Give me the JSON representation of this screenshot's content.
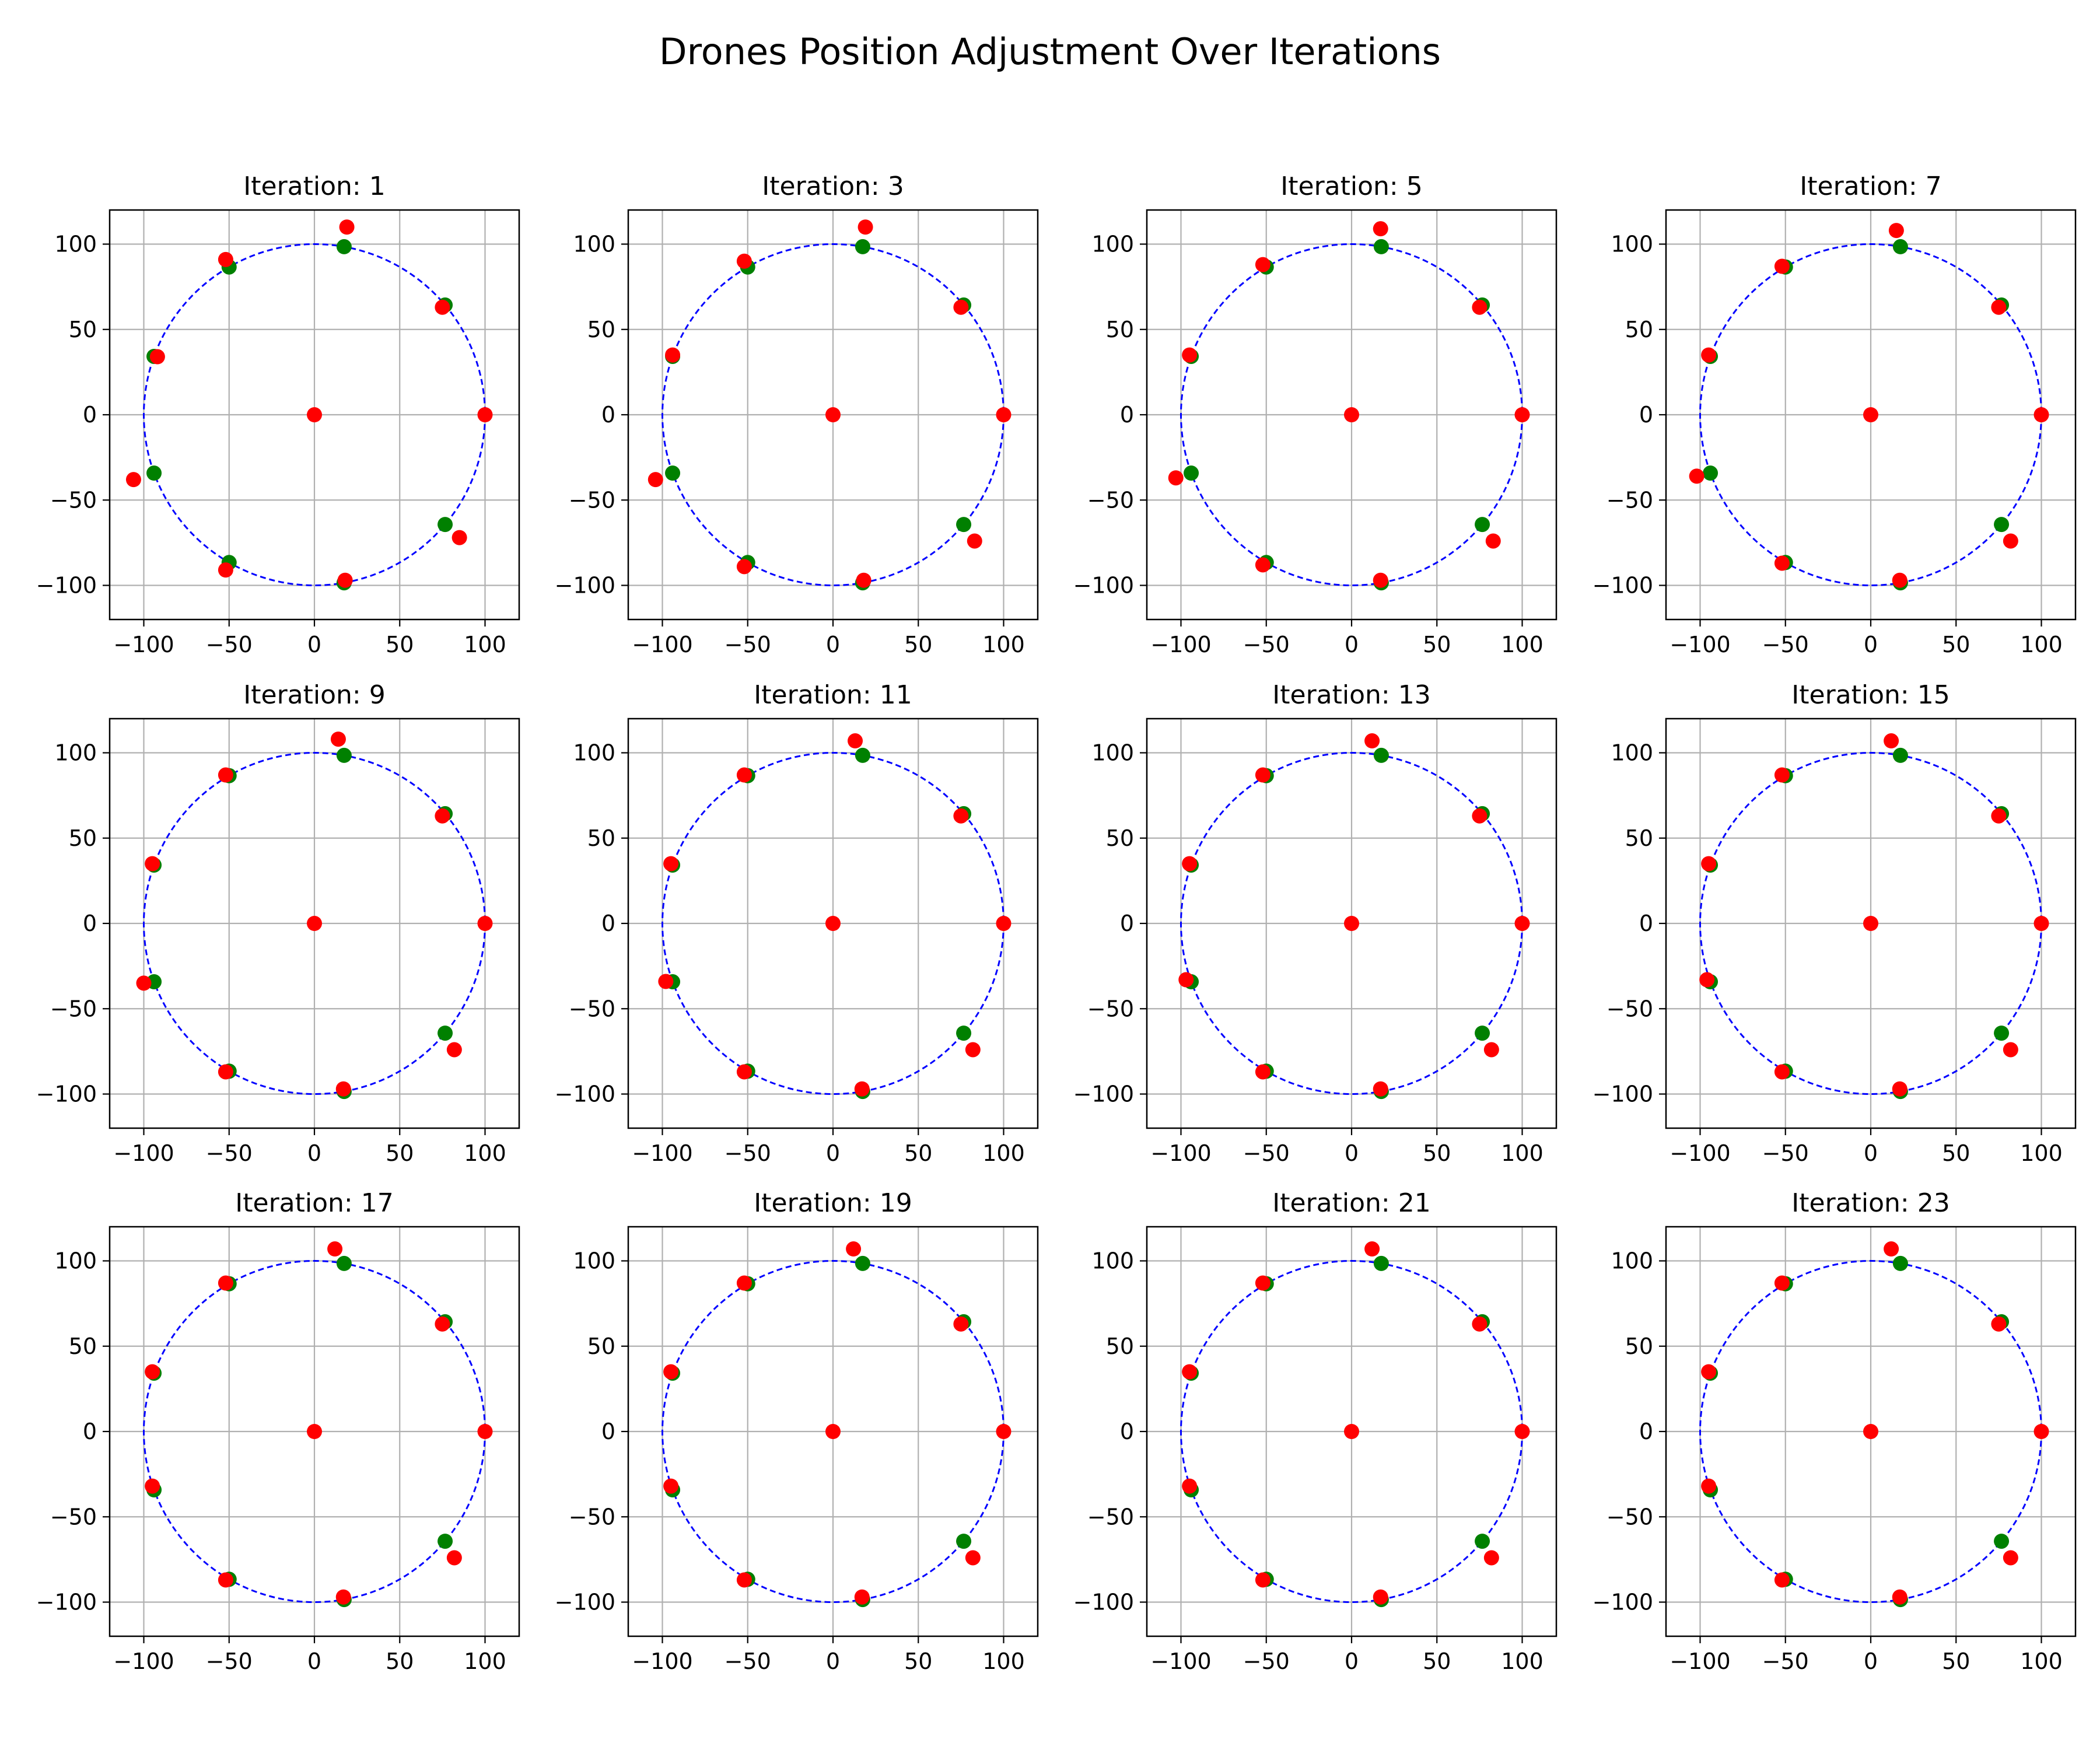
{
  "title": "Drones Position Adjustment Over Iterations",
  "colors": {
    "target": "#008000",
    "drone": "#ff0000",
    "circle": "#0000ff",
    "grid": "#b0b0b0"
  },
  "chart_data": {
    "type": "scatter",
    "xlim": [
      -120,
      120
    ],
    "ylim": [
      -120,
      120
    ],
    "xticks": [
      -100,
      -50,
      0,
      50,
      100
    ],
    "yticks": [
      -100,
      -50,
      0,
      50,
      100
    ],
    "grid": true,
    "reference_circle": {
      "center": [
        0,
        0
      ],
      "radius": 100
    },
    "targets": [
      [
        17.4,
        98.5
      ],
      [
        76.6,
        64.3
      ],
      [
        -50,
        86.6
      ],
      [
        -94,
        34.2
      ],
      [
        -94,
        -34.2
      ],
      [
        -50,
        -86.6
      ],
      [
        17.4,
        -98.5
      ],
      [
        76.6,
        -64.3
      ]
    ],
    "subplots": [
      {
        "title": "Iteration: 1",
        "drones": [
          [
            0,
            0
          ],
          [
            100,
            0
          ],
          [
            19,
            110
          ],
          [
            75,
            63
          ],
          [
            -52,
            91
          ],
          [
            -92,
            34
          ],
          [
            -106,
            -38
          ],
          [
            -52,
            -91
          ],
          [
            18,
            -97
          ],
          [
            85,
            -72
          ]
        ]
      },
      {
        "title": "Iteration: 3",
        "drones": [
          [
            0,
            0
          ],
          [
            100,
            0
          ],
          [
            19,
            110
          ],
          [
            75,
            63
          ],
          [
            -52,
            90
          ],
          [
            -94,
            35
          ],
          [
            -104,
            -38
          ],
          [
            -52,
            -89
          ],
          [
            18,
            -97
          ],
          [
            83,
            -74
          ]
        ]
      },
      {
        "title": "Iteration: 5",
        "drones": [
          [
            0,
            0
          ],
          [
            100,
            0
          ],
          [
            17,
            109
          ],
          [
            75,
            63
          ],
          [
            -52,
            88
          ],
          [
            -95,
            35
          ],
          [
            -103,
            -37
          ],
          [
            -52,
            -88
          ],
          [
            17,
            -97
          ],
          [
            83,
            -74
          ]
        ]
      },
      {
        "title": "Iteration: 7",
        "drones": [
          [
            0,
            0
          ],
          [
            100,
            0
          ],
          [
            15,
            108
          ],
          [
            75,
            63
          ],
          [
            -52,
            87
          ],
          [
            -95,
            35
          ],
          [
            -102,
            -36
          ],
          [
            -52,
            -87
          ],
          [
            17,
            -97
          ],
          [
            82,
            -74
          ]
        ]
      },
      {
        "title": "Iteration: 9",
        "drones": [
          [
            0,
            0
          ],
          [
            100,
            0
          ],
          [
            14,
            108
          ],
          [
            75,
            63
          ],
          [
            -52,
            87
          ],
          [
            -95,
            35
          ],
          [
            -100,
            -35
          ],
          [
            -52,
            -87
          ],
          [
            17,
            -97
          ],
          [
            82,
            -74
          ]
        ]
      },
      {
        "title": "Iteration: 11",
        "drones": [
          [
            0,
            0
          ],
          [
            100,
            0
          ],
          [
            13,
            107
          ],
          [
            75,
            63
          ],
          [
            -52,
            87
          ],
          [
            -95,
            35
          ],
          [
            -98,
            -34
          ],
          [
            -52,
            -87
          ],
          [
            17,
            -97
          ],
          [
            82,
            -74
          ]
        ]
      },
      {
        "title": "Iteration: 13",
        "drones": [
          [
            0,
            0
          ],
          [
            100,
            0
          ],
          [
            12,
            107
          ],
          [
            75,
            63
          ],
          [
            -52,
            87
          ],
          [
            -95,
            35
          ],
          [
            -97,
            -33
          ],
          [
            -52,
            -87
          ],
          [
            17,
            -97
          ],
          [
            82,
            -74
          ]
        ]
      },
      {
        "title": "Iteration: 15",
        "drones": [
          [
            0,
            0
          ],
          [
            100,
            0
          ],
          [
            12,
            107
          ],
          [
            75,
            63
          ],
          [
            -52,
            87
          ],
          [
            -95,
            35
          ],
          [
            -96,
            -33
          ],
          [
            -52,
            -87
          ],
          [
            17,
            -97
          ],
          [
            82,
            -74
          ]
        ]
      },
      {
        "title": "Iteration: 17",
        "drones": [
          [
            0,
            0
          ],
          [
            100,
            0
          ],
          [
            12,
            107
          ],
          [
            75,
            63
          ],
          [
            -52,
            87
          ],
          [
            -95,
            35
          ],
          [
            -95,
            -32
          ],
          [
            -52,
            -87
          ],
          [
            17,
            -97
          ],
          [
            82,
            -74
          ]
        ]
      },
      {
        "title": "Iteration: 19",
        "drones": [
          [
            0,
            0
          ],
          [
            100,
            0
          ],
          [
            12,
            107
          ],
          [
            75,
            63
          ],
          [
            -52,
            87
          ],
          [
            -95,
            35
          ],
          [
            -95,
            -32
          ],
          [
            -52,
            -87
          ],
          [
            17,
            -97
          ],
          [
            82,
            -74
          ]
        ]
      },
      {
        "title": "Iteration: 21",
        "drones": [
          [
            0,
            0
          ],
          [
            100,
            0
          ],
          [
            12,
            107
          ],
          [
            75,
            63
          ],
          [
            -52,
            87
          ],
          [
            -95,
            35
          ],
          [
            -95,
            -32
          ],
          [
            -52,
            -87
          ],
          [
            17,
            -97
          ],
          [
            82,
            -74
          ]
        ]
      },
      {
        "title": "Iteration: 23",
        "drones": [
          [
            0,
            0
          ],
          [
            100,
            0
          ],
          [
            12,
            107
          ],
          [
            75,
            63
          ],
          [
            -52,
            87
          ],
          [
            -95,
            35
          ],
          [
            -95,
            -32
          ],
          [
            -52,
            -87
          ],
          [
            17,
            -97
          ],
          [
            82,
            -74
          ]
        ]
      }
    ]
  }
}
